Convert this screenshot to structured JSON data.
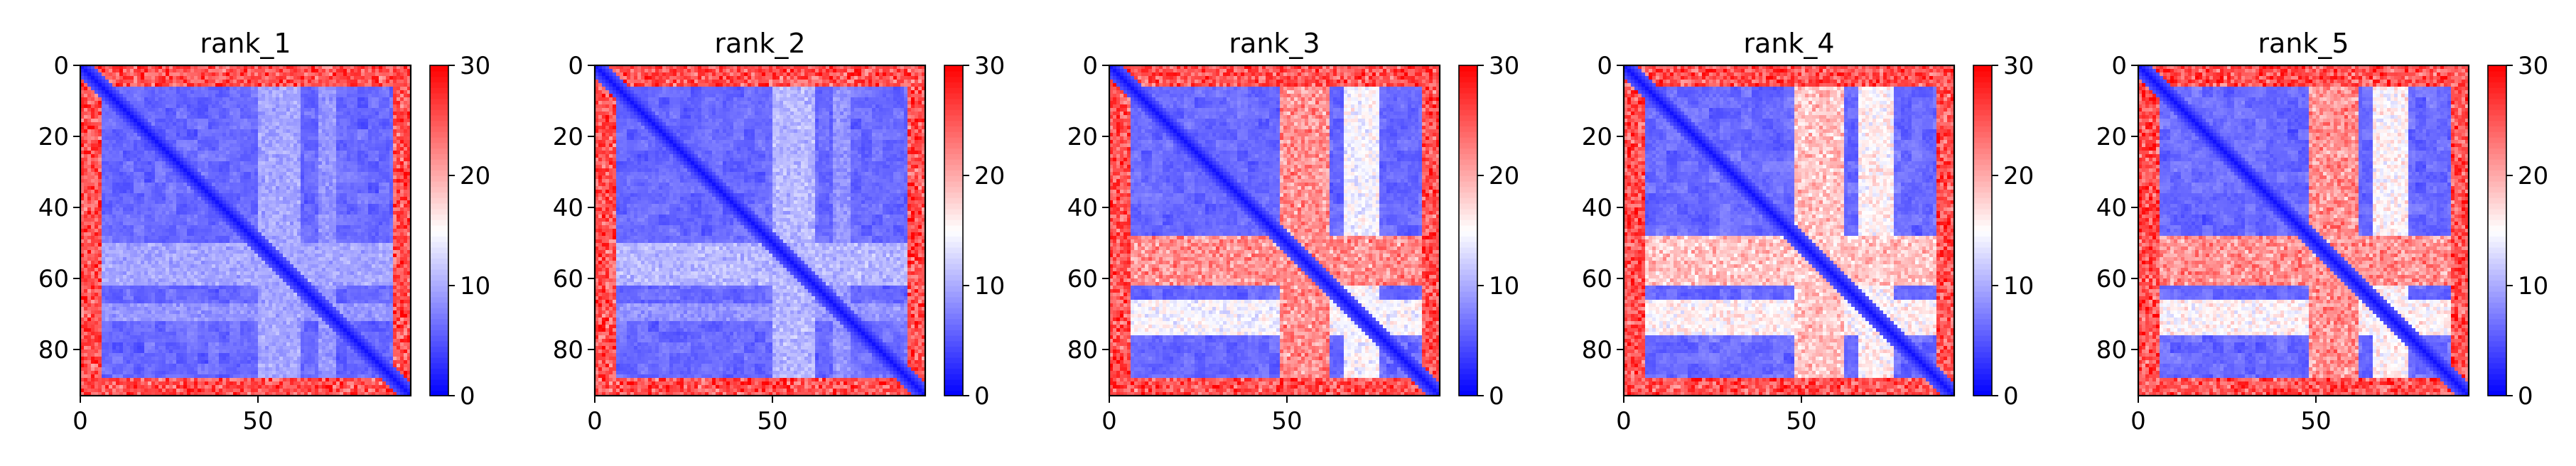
{
  "chart_data": [
    {
      "type": "heatmap",
      "title": "rank_1",
      "n": 93,
      "xlim": [
        0,
        93
      ],
      "ylim": [
        93,
        0
      ],
      "x_ticks": [
        0,
        50
      ],
      "y_ticks": [
        0,
        20,
        40,
        60,
        80
      ],
      "colorbar": {
        "cmap": "bwr",
        "vmin": 0,
        "vmax": 30,
        "ticks": [
          0,
          10,
          20,
          30
        ]
      },
      "regions": [
        {
          "rows": [
            0,
            6
          ],
          "value": 26
        },
        {
          "rows": [
            88,
            93
          ],
          "value": 26
        },
        {
          "rows": [
            50,
            62
          ],
          "value": 10
        },
        {
          "rows": [
            67,
            72
          ],
          "value": 9
        }
      ]
    },
    {
      "type": "heatmap",
      "title": "rank_2",
      "n": 93,
      "xlim": [
        0,
        93
      ],
      "ylim": [
        93,
        0
      ],
      "x_ticks": [
        0,
        50
      ],
      "y_ticks": [
        0,
        20,
        40,
        60,
        80
      ],
      "colorbar": {
        "cmap": "bwr",
        "vmin": 0,
        "vmax": 30,
        "ticks": [
          0,
          10,
          20,
          30
        ]
      },
      "regions": [
        {
          "rows": [
            0,
            6
          ],
          "value": 26
        },
        {
          "rows": [
            88,
            93
          ],
          "value": 26
        },
        {
          "rows": [
            50,
            62
          ],
          "value": 11
        },
        {
          "rows": [
            67,
            72
          ],
          "value": 9
        }
      ]
    },
    {
      "type": "heatmap",
      "title": "rank_3",
      "n": 93,
      "xlim": [
        0,
        93
      ],
      "ylim": [
        93,
        0
      ],
      "x_ticks": [
        0,
        50
      ],
      "y_ticks": [
        0,
        20,
        40,
        60,
        80
      ],
      "colorbar": {
        "cmap": "bwr",
        "vmin": 0,
        "vmax": 30,
        "ticks": [
          0,
          10,
          20,
          30
        ]
      },
      "regions": [
        {
          "rows": [
            0,
            6
          ],
          "value": 26
        },
        {
          "rows": [
            88,
            93
          ],
          "value": 26
        },
        {
          "rows": [
            48,
            62
          ],
          "value": 22
        },
        {
          "rows": [
            66,
            76
          ],
          "value": 15
        }
      ]
    },
    {
      "type": "heatmap",
      "title": "rank_4",
      "n": 93,
      "xlim": [
        0,
        93
      ],
      "ylim": [
        93,
        0
      ],
      "x_ticks": [
        0,
        50
      ],
      "y_ticks": [
        0,
        20,
        40,
        60,
        80
      ],
      "colorbar": {
        "cmap": "bwr",
        "vmin": 0,
        "vmax": 30,
        "ticks": [
          0,
          10,
          20,
          30
        ]
      },
      "regions": [
        {
          "rows": [
            0,
            6
          ],
          "value": 26
        },
        {
          "rows": [
            88,
            93
          ],
          "value": 26
        },
        {
          "rows": [
            48,
            62
          ],
          "value": 19
        },
        {
          "rows": [
            66,
            76
          ],
          "value": 16
        }
      ]
    },
    {
      "type": "heatmap",
      "title": "rank_5",
      "n": 93,
      "xlim": [
        0,
        93
      ],
      "ylim": [
        93,
        0
      ],
      "x_ticks": [
        0,
        50
      ],
      "y_ticks": [
        0,
        20,
        40,
        60,
        80
      ],
      "colorbar": {
        "cmap": "bwr",
        "vmin": 0,
        "vmax": 30,
        "ticks": [
          0,
          10,
          20,
          30
        ]
      },
      "regions": [
        {
          "rows": [
            0,
            6
          ],
          "value": 26
        },
        {
          "rows": [
            88,
            93
          ],
          "value": 26
        },
        {
          "rows": [
            48,
            62
          ],
          "value": 22
        },
        {
          "rows": [
            66,
            76
          ],
          "value": 16
        }
      ]
    }
  ]
}
